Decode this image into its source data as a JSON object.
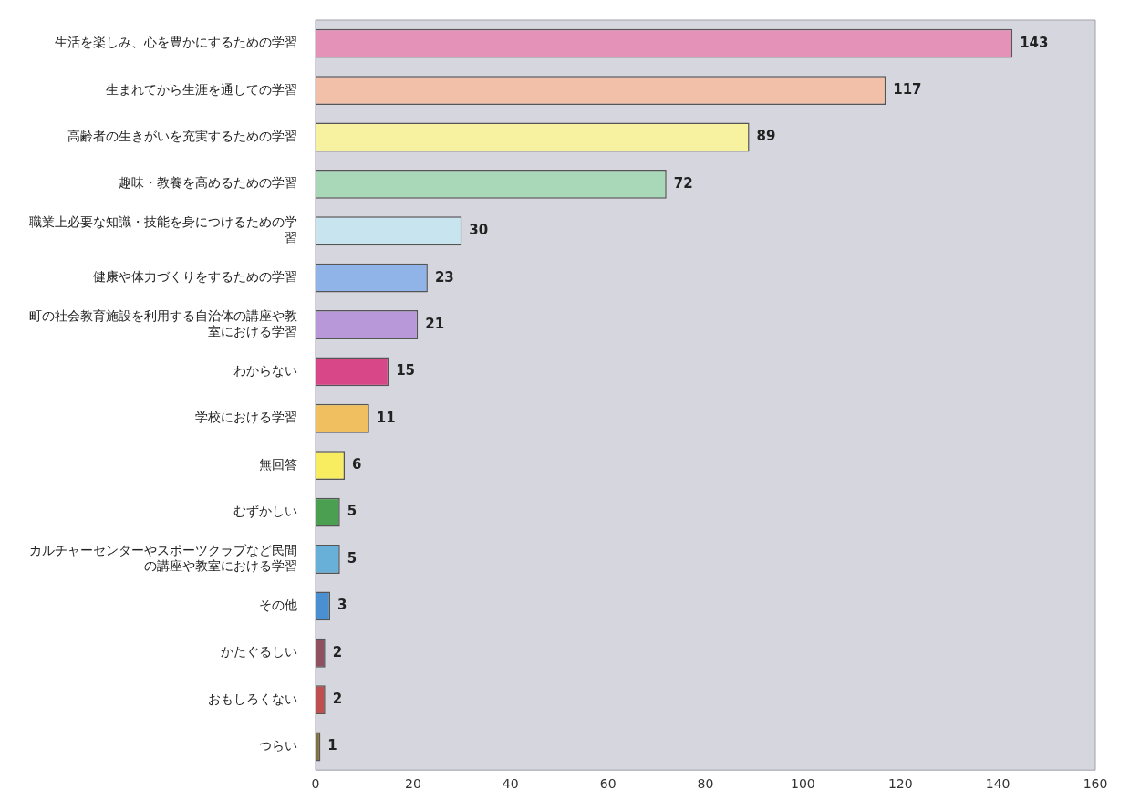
{
  "chart_data": {
    "type": "bar",
    "orientation": "horizontal",
    "data_labels": true,
    "grid": false,
    "legend": false,
    "categories": [
      "生活を楽しみ、心を豊かにするための学習",
      "生まれてから生涯を通しての学習",
      "高齢者の生きがいを充実するための学習",
      "趣味・教養を高めるための学習",
      "職業上必要な知識・技能を身につけるための学習",
      "健康や体力づくりをするための学習",
      "町の社会教育施設を利用する自治体の講座や教室における学習",
      "わからない",
      "学校における学習",
      "無回答",
      "むずかしい",
      "カルチャーセンターやスポーツクラブなど民間の講座や教室における学習",
      "その他",
      "かたぐるしい",
      "おもしろくない",
      "つらい"
    ],
    "values": [
      143,
      117,
      89,
      72,
      30,
      23,
      21,
      15,
      11,
      6,
      5,
      5,
      3,
      2,
      2,
      1
    ],
    "colors": [
      "#e592b8",
      "#f2c0a8",
      "#f6f2a0",
      "#a8d8b8",
      "#c8e4ee",
      "#90b4e8",
      "#b898d8",
      "#d84888",
      "#f0c060",
      "#f8ec60",
      "#4aa050",
      "#68b0d8",
      "#4a90d0",
      "#905060",
      "#c05050",
      "#807040"
    ],
    "xlim": [
      0,
      160
    ],
    "xticks": [
      0,
      20,
      40,
      60,
      80,
      100,
      120,
      140,
      160
    ]
  }
}
